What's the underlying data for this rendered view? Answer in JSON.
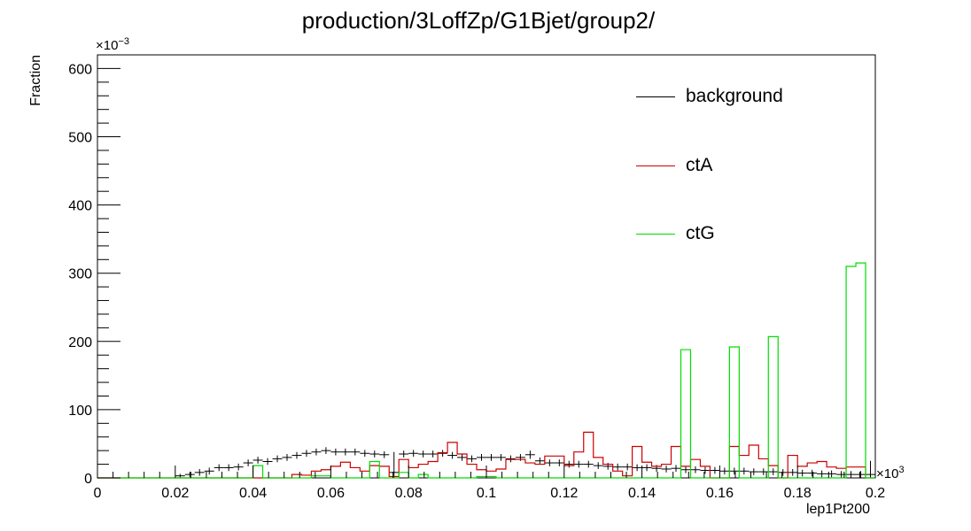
{
  "chart_data": {
    "type": "histogram",
    "title": "production/3LoffZp/G1Bjet/group2/",
    "xlabel": "lep1Pt200",
    "ylabel": "Fraction",
    "x_scale_label": "×10",
    "x_scale_exp": "3",
    "y_scale_label": "×10",
    "y_scale_exp": "−3",
    "xlim": [
      0,
      0.2
    ],
    "ylim": [
      0,
      620
    ],
    "x_ticks": [
      {
        "value": 0,
        "label": "0"
      },
      {
        "value": 0.02,
        "label": "0.02"
      },
      {
        "value": 0.04,
        "label": "0.04"
      },
      {
        "value": 0.06,
        "label": "0.06"
      },
      {
        "value": 0.08,
        "label": "0.08"
      },
      {
        "value": 0.1,
        "label": "0.1"
      },
      {
        "value": 0.12,
        "label": "0.12"
      },
      {
        "value": 0.14,
        "label": "0.14"
      },
      {
        "value": 0.16,
        "label": "0.16"
      },
      {
        "value": 0.18,
        "label": "0.18"
      },
      {
        "value": 0.2,
        "label": "0.2"
      }
    ],
    "y_ticks": [
      {
        "value": 0,
        "label": "0"
      },
      {
        "value": 100,
        "label": "100"
      },
      {
        "value": 200,
        "label": "200"
      },
      {
        "value": 300,
        "label": "300"
      },
      {
        "value": 400,
        "label": "400"
      },
      {
        "value": 500,
        "label": "500"
      },
      {
        "value": 600,
        "label": "600"
      }
    ],
    "bin_width": 0.0025,
    "legend_position": "top-right",
    "series": [
      {
        "name": "background",
        "color": "#000000",
        "style": "points-with-errors",
        "x": [
          0.00125,
          0.00375,
          0.00625,
          0.00875,
          0.01125,
          0.01375,
          0.01625,
          0.01875,
          0.02125,
          0.02375,
          0.02625,
          0.02875,
          0.03125,
          0.03375,
          0.03625,
          0.03875,
          0.04125,
          0.04375,
          0.04625,
          0.04875,
          0.05125,
          0.05375,
          0.05625,
          0.05875,
          0.06125,
          0.06375,
          0.06625,
          0.06875,
          0.07125,
          0.07375,
          0.07625,
          0.07875,
          0.08125,
          0.08375,
          0.08625,
          0.08875,
          0.09125,
          0.09375,
          0.09625,
          0.09875,
          0.10125,
          0.10375,
          0.10625,
          0.10875,
          0.11125,
          0.11375,
          0.11625,
          0.11875,
          0.12125,
          0.12375,
          0.12625,
          0.12875,
          0.13125,
          0.13375,
          0.13625,
          0.13875,
          0.14125,
          0.14375,
          0.14625,
          0.14875,
          0.15125,
          0.15375,
          0.15625,
          0.15875,
          0.16125,
          0.16375,
          0.16625,
          0.16875,
          0.17125,
          0.17375,
          0.17625,
          0.17875,
          0.18125,
          0.18375,
          0.18625,
          0.18875,
          0.19125,
          0.19375,
          0.19625,
          0.19875
        ],
        "y": [
          0,
          0,
          0,
          0,
          0,
          0,
          0,
          0,
          3,
          5,
          8,
          10,
          15,
          15,
          16,
          22,
          26,
          24,
          28,
          30,
          33,
          36,
          38,
          40,
          38,
          38,
          38,
          36,
          35,
          34,
          8,
          35,
          36,
          35,
          35,
          36,
          33,
          30,
          28,
          30,
          30,
          30,
          28,
          30,
          34,
          25,
          22,
          22,
          20,
          20,
          20,
          18,
          17,
          16,
          16,
          15,
          15,
          14,
          13,
          14,
          12,
          12,
          11,
          11,
          10,
          10,
          10,
          9,
          9,
          9,
          8,
          8,
          7,
          7,
          6,
          6,
          5,
          5,
          5,
          5
        ],
        "err": [
          0,
          0,
          0,
          0,
          0,
          0,
          0,
          0,
          3,
          4,
          5,
          5,
          5,
          5,
          5,
          5,
          5,
          5,
          5,
          5,
          5,
          5,
          5,
          5,
          5,
          5,
          5,
          5,
          5,
          5,
          30,
          5,
          5,
          5,
          5,
          5,
          5,
          5,
          5,
          5,
          5,
          5,
          5,
          5,
          6,
          5,
          5,
          5,
          5,
          5,
          5,
          5,
          5,
          5,
          5,
          5,
          5,
          5,
          5,
          5,
          5,
          5,
          5,
          5,
          5,
          5,
          5,
          5,
          5,
          5,
          5,
          5,
          5,
          5,
          5,
          5,
          5,
          5,
          5,
          20
        ]
      },
      {
        "name": "ctA",
        "color": "#cc0000",
        "style": "step",
        "values": [
          0,
          0,
          0,
          0,
          0,
          0,
          0,
          0,
          0,
          0,
          0,
          0,
          0,
          0,
          0,
          0,
          0,
          0,
          0,
          0,
          5,
          4,
          10,
          12,
          17,
          23,
          15,
          10,
          18,
          17,
          2,
          27,
          15,
          20,
          24,
          37,
          52,
          35,
          20,
          12,
          10,
          13,
          27,
          27,
          22,
          20,
          32,
          32,
          18,
          38,
          67,
          30,
          20,
          10,
          3,
          46,
          23,
          17,
          20,
          46,
          17,
          27,
          17,
          0,
          0,
          46,
          33,
          48,
          28,
          18,
          0,
          33,
          17,
          22,
          24,
          16,
          14,
          16,
          16,
          0
        ],
        "seg_type": "partial"
      },
      {
        "name": "ctG",
        "color": "#00dd00",
        "style": "step",
        "values": [
          0,
          0,
          0,
          0,
          0,
          0,
          0,
          0,
          0,
          0,
          0,
          0,
          0,
          0,
          0,
          0,
          18,
          0,
          0,
          0,
          0,
          0,
          3,
          3,
          0,
          0,
          0,
          0,
          24,
          0,
          0,
          8,
          0,
          5,
          0,
          0,
          0,
          0,
          0,
          2,
          2,
          0,
          0,
          0,
          0,
          0,
          0,
          0,
          0,
          0,
          0,
          0,
          0,
          0,
          0,
          0,
          0,
          0,
          0,
          0,
          188,
          0,
          0,
          0,
          0,
          192,
          0,
          0,
          0,
          207,
          0,
          0,
          0,
          0,
          0,
          0,
          0,
          310,
          315,
          0
        ]
      }
    ]
  }
}
